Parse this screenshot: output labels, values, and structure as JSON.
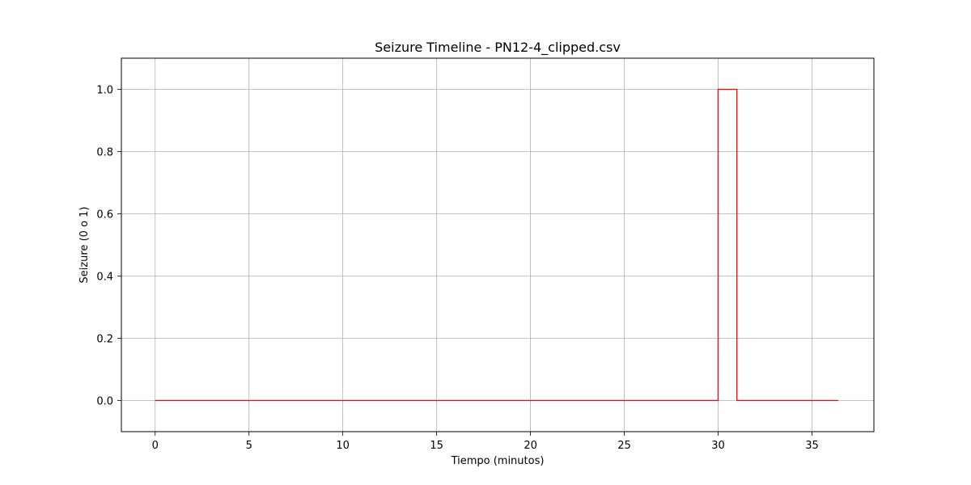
{
  "chart_data": {
    "type": "line",
    "title": "Seizure Timeline - PN12-4_clipped.csv",
    "xlabel": "Tiempo (minutos)",
    "ylabel": "Seizure (0 o 1)",
    "xlim": [
      -1.8,
      38.3
    ],
    "ylim": [
      -0.1,
      1.1
    ],
    "xticks": [
      0,
      5,
      10,
      15,
      20,
      25,
      30,
      35
    ],
    "yticks": [
      0.0,
      0.2,
      0.4,
      0.6,
      0.8,
      1.0
    ],
    "xtick_labels": [
      "0",
      "5",
      "10",
      "15",
      "20",
      "25",
      "30",
      "35"
    ],
    "ytick_labels": [
      "0.0",
      "0.2",
      "0.4",
      "0.6",
      "0.8",
      "1.0"
    ],
    "grid": true,
    "series": [
      {
        "color": "#ff0000",
        "step": true,
        "x": [
          0,
          30,
          30,
          31,
          31,
          36.4
        ],
        "values": [
          0,
          0,
          1,
          1,
          0,
          0
        ]
      }
    ]
  }
}
